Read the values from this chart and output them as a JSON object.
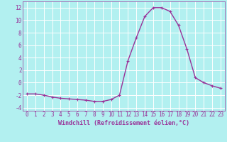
{
  "hours": [
    0,
    1,
    2,
    3,
    4,
    5,
    6,
    7,
    8,
    9,
    10,
    11,
    12,
    13,
    14,
    15,
    16,
    17,
    18,
    19,
    20,
    21,
    22,
    23
  ],
  "values": [
    -1.8,
    -1.8,
    -2.0,
    -2.3,
    -2.5,
    -2.6,
    -2.7,
    -2.8,
    -3.0,
    -3.0,
    -2.7,
    -2.0,
    3.5,
    7.2,
    10.6,
    12.0,
    12.0,
    11.4,
    9.2,
    5.4,
    0.8,
    0.0,
    -0.5,
    -0.9
  ],
  "line_color": "#993399",
  "marker": "+",
  "marker_size": 3,
  "marker_linewidth": 0.8,
  "xlabel": "Windchill (Refroidissement éolien,°C)",
  "xlabel_fontsize": 6.0,
  "background_color": "#b2f0f0",
  "grid_color": "#ffffff",
  "tick_color": "#993399",
  "label_color": "#993399",
  "ylim": [
    -4.5,
    13
  ],
  "yticks": [
    -4,
    -2,
    0,
    2,
    4,
    6,
    8,
    10,
    12
  ],
  "xticks": [
    0,
    1,
    2,
    3,
    4,
    5,
    6,
    7,
    8,
    9,
    10,
    11,
    12,
    13,
    14,
    15,
    16,
    17,
    18,
    19,
    20,
    21,
    22,
    23
  ],
  "line_width": 1.0,
  "tick_fontsize": 5.5
}
